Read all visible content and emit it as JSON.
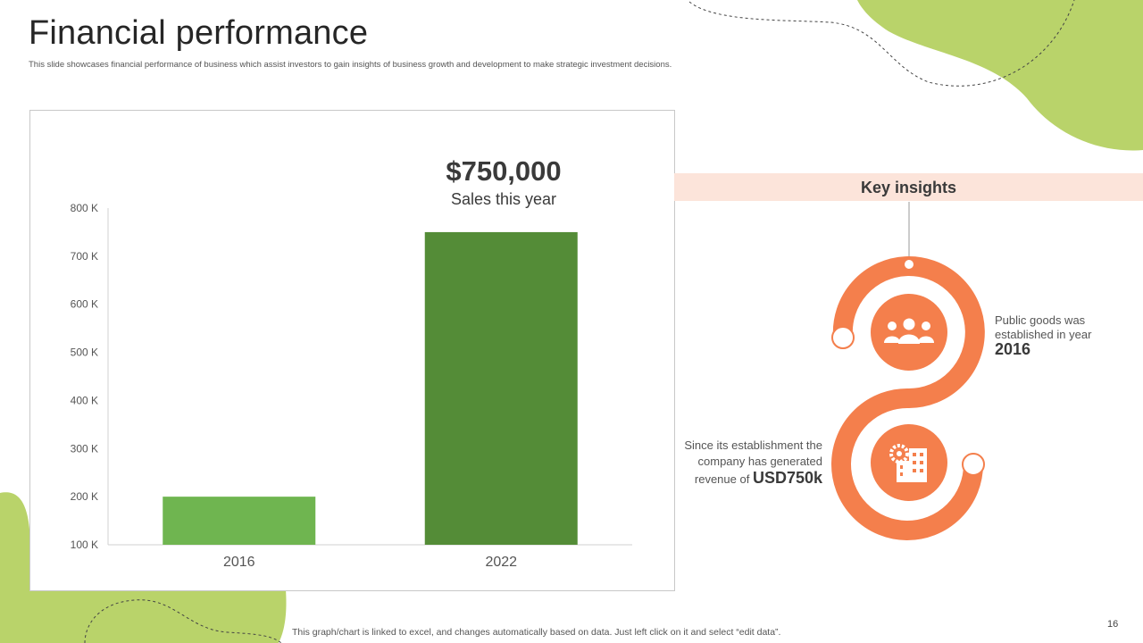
{
  "slide": {
    "title": "Financial performance",
    "subtitle": "This slide showcases financial performance of business which assist investors to gain insights of business growth and development to make strategic investment decisions.",
    "footnote": "This graph/chart is linked to excel, and changes automatically based on data. Just left click on it and select “edit data”.",
    "page_number": "16"
  },
  "highlight": {
    "value": "$750,000",
    "caption": "Sales this year"
  },
  "key_insights": {
    "title": "Key insights",
    "items": [
      {
        "text": "Public goods was established in year",
        "emphasis": "2016",
        "icon": "people-group-icon"
      },
      {
        "text": "Since its establishment the company has generated revenue of",
        "emphasis": "USD750k",
        "icon": "gear-building-icon"
      }
    ]
  },
  "colors": {
    "accent_green": "#b9d36a",
    "bar_2016": "#6fb550",
    "bar_2022": "#548c37",
    "accent_orange": "#f47f4c",
    "insights_bar": "#fce4da"
  },
  "chart_data": {
    "type": "bar",
    "title": "",
    "xlabel": "",
    "ylabel": "",
    "categories": [
      "2016",
      "2022"
    ],
    "values": [
      200000,
      750000
    ],
    "ylim": [
      100000,
      800000
    ],
    "yticks": [
      100000,
      200000,
      300000,
      400000,
      500000,
      600000,
      700000,
      800000
    ],
    "ytick_labels": [
      "100 K",
      "200 K",
      "300 K",
      "400 K",
      "500 K",
      "600 K",
      "700 K",
      "800 K"
    ],
    "grid": false
  }
}
